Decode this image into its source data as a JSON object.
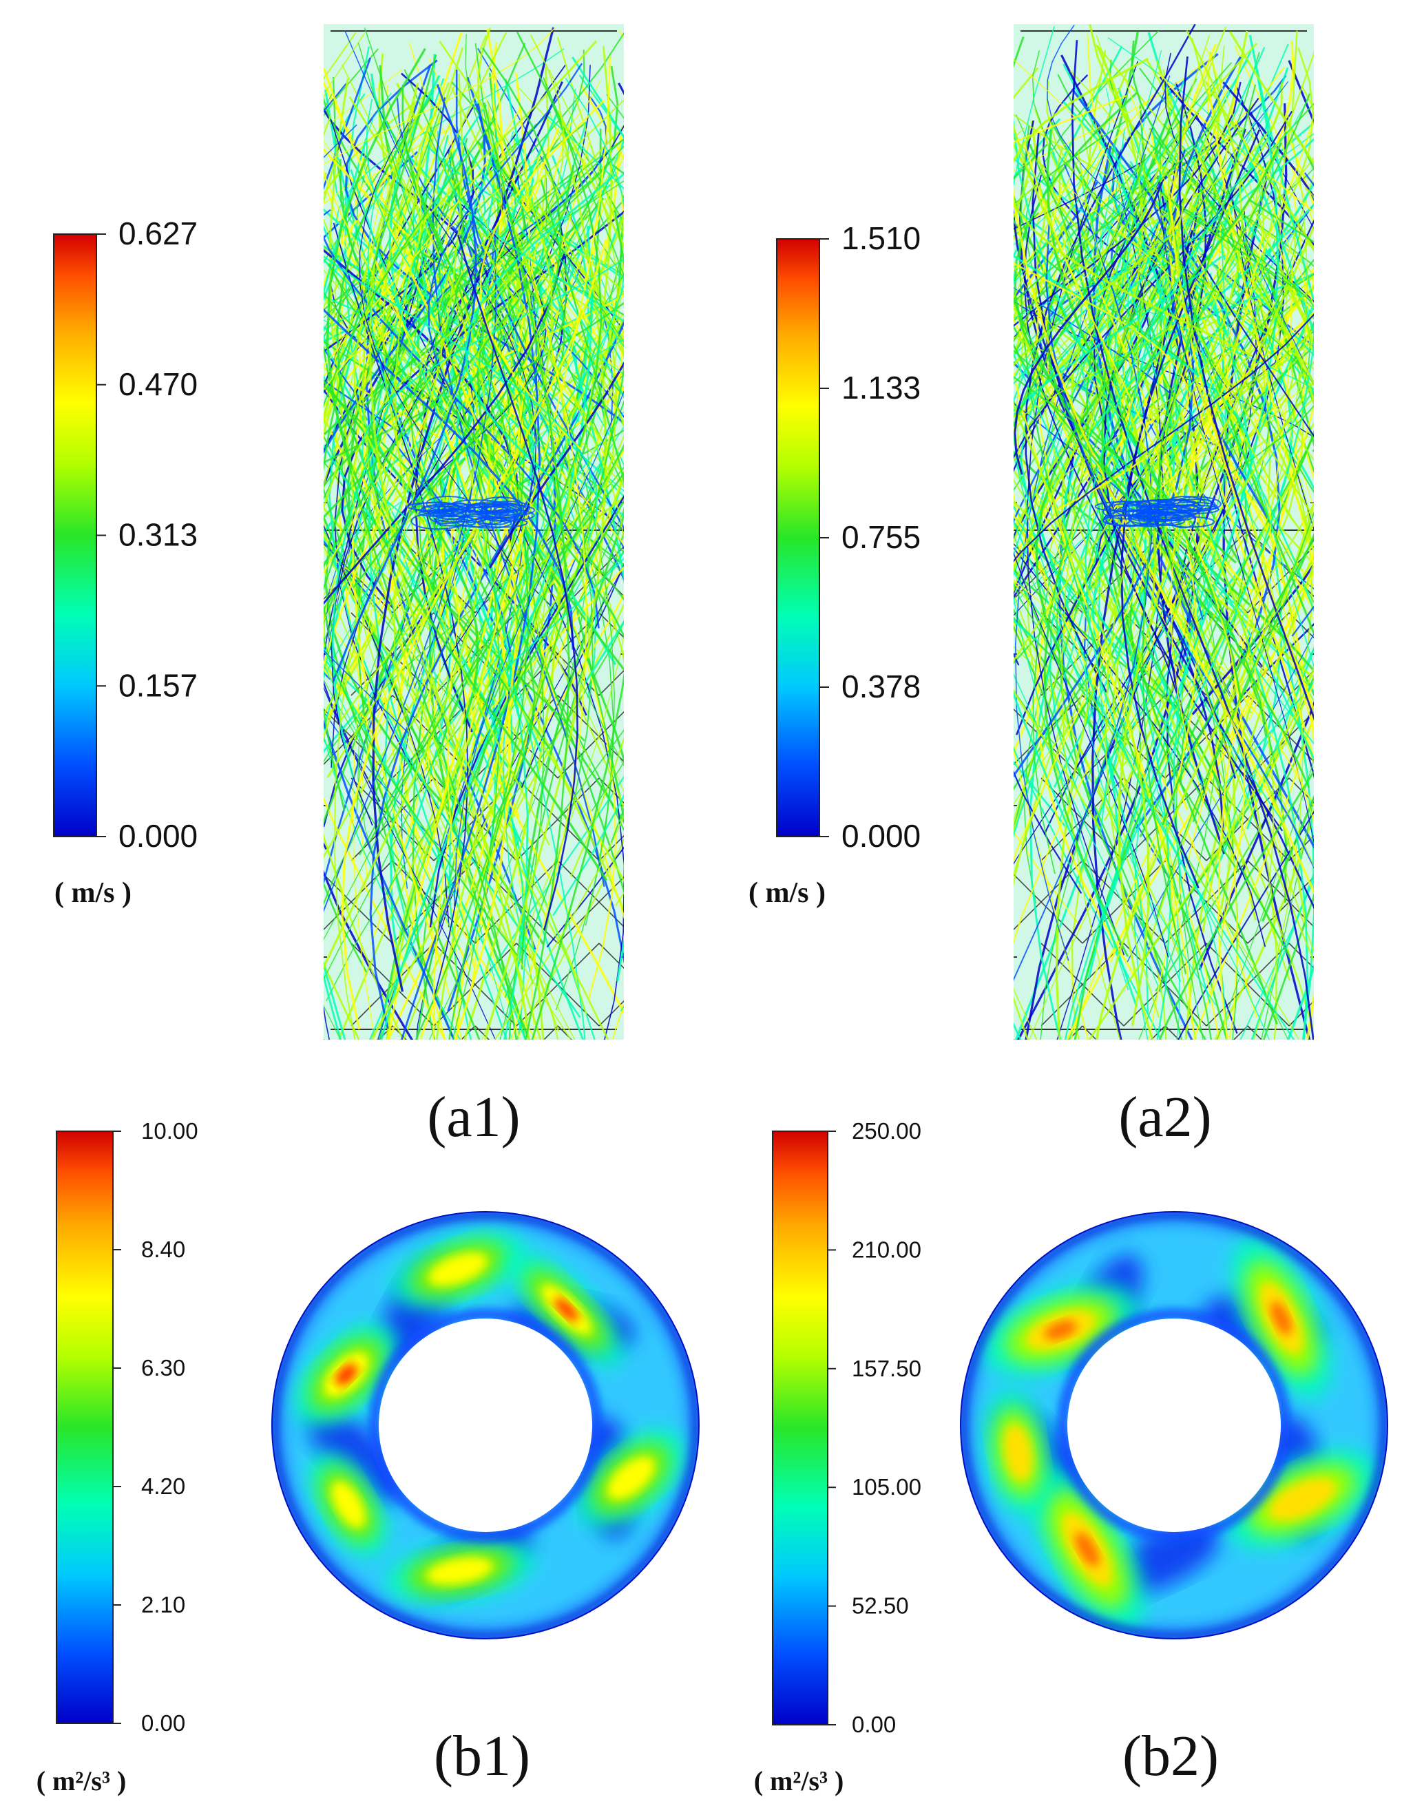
{
  "panels": [
    {
      "id": "a1",
      "label": "(a1)",
      "kind": "streamlines",
      "colorbar": {
        "ticks": [
          "0.627",
          "0.470",
          "0.313",
          "0.157",
          "0.000"
        ],
        "max": 0.627,
        "min": 0.0,
        "unit": "( m/s )"
      }
    },
    {
      "id": "a2",
      "label": "(a2)",
      "kind": "streamlines",
      "colorbar": {
        "ticks": [
          "1.510",
          "1.133",
          "0.755",
          "0.378",
          "0.000"
        ],
        "max": 1.51,
        "min": 0.0,
        "unit": "( m/s )"
      }
    },
    {
      "id": "b1",
      "label": "(b1)",
      "kind": "annulus-contour",
      "colorbar": {
        "ticks": [
          "10.00",
          "8.40",
          "6.30",
          "4.20",
          "2.10",
          "0.00"
        ],
        "max": 10.0,
        "min": 0.0,
        "unit": "( m²/s³ )"
      }
    },
    {
      "id": "b2",
      "label": "(b2)",
      "kind": "annulus-contour",
      "colorbar": {
        "ticks": [
          "250.00",
          "210.00",
          "157.50",
          "105.00",
          "52.50",
          "0.00"
        ],
        "max": 250.0,
        "min": 0.0,
        "unit": "( m²/s³ )"
      }
    }
  ],
  "colormap": [
    "#0000c8",
    "#0050ff",
    "#00c8ff",
    "#00ffb4",
    "#28e628",
    "#b4ff00",
    "#ffff00",
    "#ffaa00",
    "#ff5000",
    "#d20000"
  ]
}
